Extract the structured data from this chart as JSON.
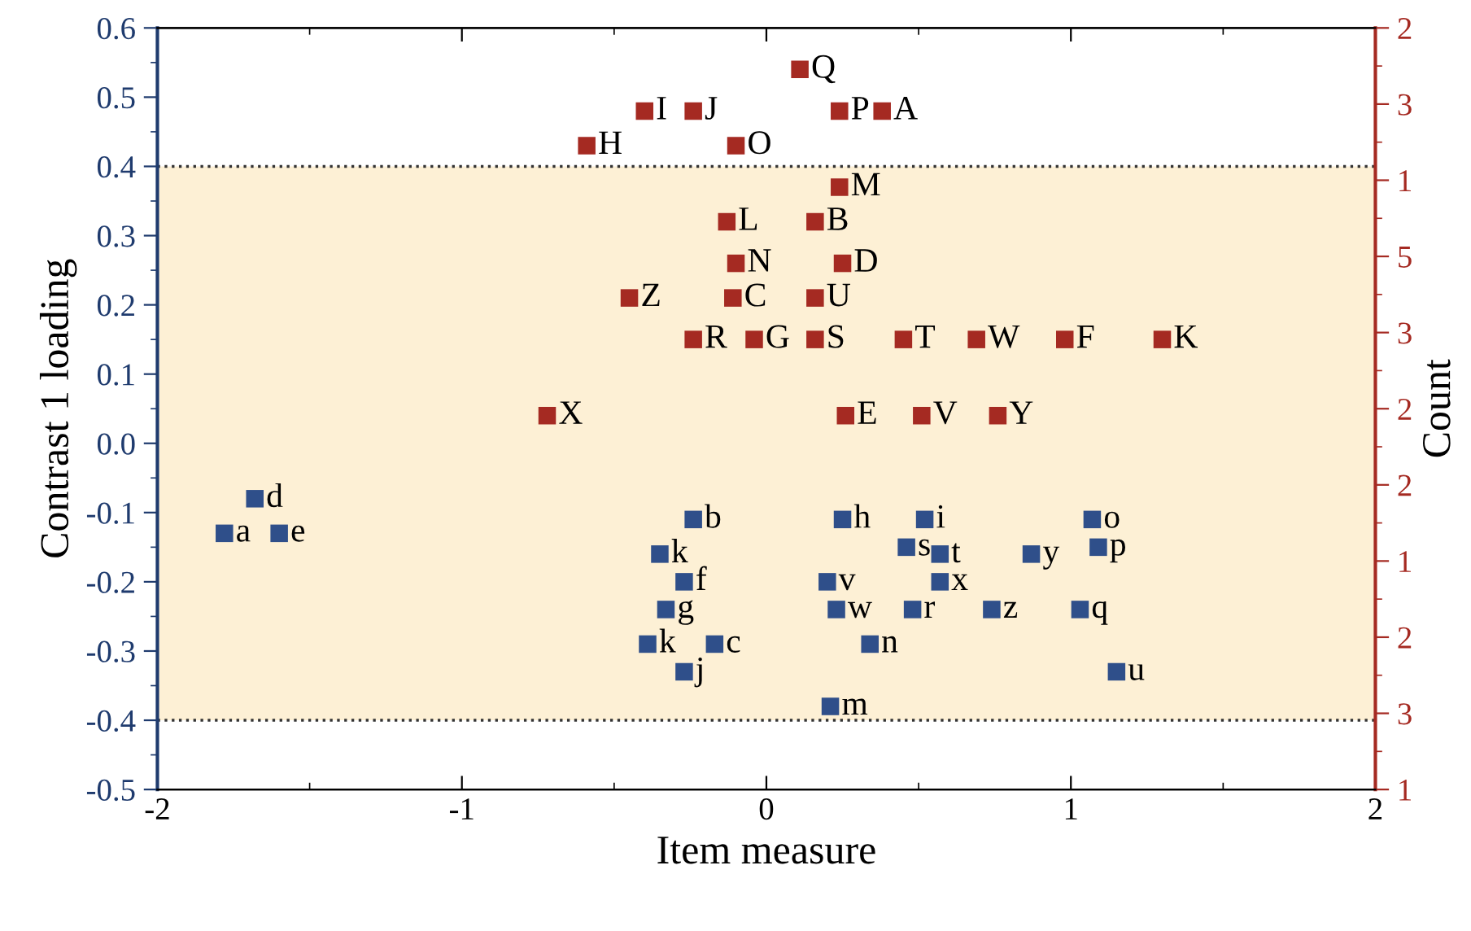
{
  "chart_data": {
    "type": "scatter",
    "xlabel": "Item measure",
    "ylabel": "Contrast 1 loading",
    "y2label": "Count",
    "xlim": [
      -2,
      2
    ],
    "xticks": [
      -2,
      -1,
      0,
      1,
      2
    ],
    "ylim": [
      -0.5,
      0.6
    ],
    "yticks": [
      {
        "value": -0.5,
        "label": "-0.5"
      },
      {
        "value": -0.4,
        "label": "-0.4"
      },
      {
        "value": -0.3,
        "label": "-0.3"
      },
      {
        "value": -0.2,
        "label": "-0.2"
      },
      {
        "value": -0.1,
        "label": "-0.1"
      },
      {
        "value": 0,
        "label": "0.0"
      },
      {
        "value": 0.1,
        "label": "0.1"
      },
      {
        "value": 0.2,
        "label": "0.2"
      },
      {
        "value": 0.3,
        "label": "0.3"
      },
      {
        "value": 0.4,
        "label": "0.4"
      },
      {
        "value": 0.5,
        "label": "0.5"
      },
      {
        "value": 0.6,
        "label": "0.6"
      }
    ],
    "y2_categories": [
      "2",
      "3",
      "1",
      "5",
      "3",
      "2",
      "2",
      "1",
      "2",
      "3",
      "1"
    ],
    "marker": "square",
    "grid": false,
    "legend": false,
    "bands": [
      {
        "axis": "y",
        "from": -0.4,
        "to": 0.4,
        "color": "#fdf0d5"
      }
    ],
    "ref_lines": [
      {
        "axis": "y",
        "value": 0.4,
        "line_style": "dotted",
        "color": "#333333"
      },
      {
        "axis": "y",
        "value": -0.4,
        "line_style": "dotted",
        "color": "#333333"
      }
    ],
    "series": [
      {
        "color": "#a52a22",
        "x": [
          0.11,
          -0.4,
          -0.24,
          0.24,
          0.38,
          -0.59,
          -0.1,
          0.24,
          -0.13,
          0.16,
          -0.1,
          0.25,
          -0.45,
          -0.11,
          0.16,
          -0.24,
          -0.04,
          0.16,
          0.45,
          0.69,
          0.98,
          1.3,
          -0.72,
          0.26,
          0.51,
          0.76
        ],
        "values": [
          0.54,
          0.48,
          0.48,
          0.48,
          0.48,
          0.43,
          0.43,
          0.37,
          0.32,
          0.32,
          0.26,
          0.26,
          0.21,
          0.21,
          0.21,
          0.15,
          0.15,
          0.15,
          0.15,
          0.15,
          0.15,
          0.15,
          0.04,
          0.04,
          0.04,
          0.04
        ]
      },
      {
        "color": "#2f4f8a",
        "x": [
          -1.68,
          -1.78,
          -1.6,
          -0.24,
          -0.35,
          -0.27,
          -0.33,
          -0.39,
          -0.17,
          -0.27,
          0.25,
          0.52,
          0.46,
          0.57,
          0.87,
          1.07,
          1.09,
          0.2,
          0.57,
          0.23,
          0.48,
          0.74,
          1.03,
          0.34,
          1.15,
          0.21
        ],
        "values": [
          -0.08,
          -0.13,
          -0.13,
          -0.11,
          -0.16,
          -0.2,
          -0.24,
          -0.29,
          -0.29,
          -0.33,
          -0.11,
          -0.11,
          -0.15,
          -0.16,
          -0.16,
          -0.11,
          -0.15,
          -0.2,
          -0.2,
          -0.24,
          -0.24,
          -0.24,
          -0.24,
          -0.29,
          -0.33,
          -0.38
        ]
      }
    ],
    "annotations": [
      {
        "text": "Q",
        "x": 0.11,
        "y": 0.54
      },
      {
        "text": "I",
        "x": -0.4,
        "y": 0.48
      },
      {
        "text": "J",
        "x": -0.24,
        "y": 0.48
      },
      {
        "text": "P",
        "x": 0.24,
        "y": 0.48
      },
      {
        "text": "A",
        "x": 0.38,
        "y": 0.48
      },
      {
        "text": "H",
        "x": -0.59,
        "y": 0.43
      },
      {
        "text": "O",
        "x": -0.1,
        "y": 0.43
      },
      {
        "text": "M",
        "x": 0.24,
        "y": 0.37
      },
      {
        "text": "L",
        "x": -0.13,
        "y": 0.32
      },
      {
        "text": "B",
        "x": 0.16,
        "y": 0.32
      },
      {
        "text": "N",
        "x": -0.1,
        "y": 0.26
      },
      {
        "text": "D",
        "x": 0.25,
        "y": 0.26
      },
      {
        "text": "Z",
        "x": -0.45,
        "y": 0.21
      },
      {
        "text": "C",
        "x": -0.11,
        "y": 0.21
      },
      {
        "text": "U",
        "x": 0.16,
        "y": 0.21
      },
      {
        "text": "R",
        "x": -0.24,
        "y": 0.15
      },
      {
        "text": "G",
        "x": -0.04,
        "y": 0.15
      },
      {
        "text": "S",
        "x": 0.16,
        "y": 0.15
      },
      {
        "text": "T",
        "x": 0.45,
        "y": 0.15
      },
      {
        "text": "W",
        "x": 0.69,
        "y": 0.15
      },
      {
        "text": "F",
        "x": 0.98,
        "y": 0.15
      },
      {
        "text": "K",
        "x": 1.3,
        "y": 0.15
      },
      {
        "text": "X",
        "x": -0.72,
        "y": 0.04
      },
      {
        "text": "E",
        "x": 0.26,
        "y": 0.04
      },
      {
        "text": "V",
        "x": 0.51,
        "y": 0.04
      },
      {
        "text": "Y",
        "x": 0.76,
        "y": 0.04
      },
      {
        "text": "d",
        "x": -1.68,
        "y": -0.08
      },
      {
        "text": "a",
        "x": -1.78,
        "y": -0.13
      },
      {
        "text": "e",
        "x": -1.6,
        "y": -0.13
      },
      {
        "text": "b",
        "x": -0.24,
        "y": -0.11
      },
      {
        "text": "k",
        "x": -0.35,
        "y": -0.16
      },
      {
        "text": "f",
        "x": -0.27,
        "y": -0.2
      },
      {
        "text": "g",
        "x": -0.33,
        "y": -0.24
      },
      {
        "text": "k",
        "x": -0.39,
        "y": -0.29
      },
      {
        "text": "c",
        "x": -0.17,
        "y": -0.29
      },
      {
        "text": "j",
        "x": -0.27,
        "y": -0.33
      },
      {
        "text": "h",
        "x": 0.25,
        "y": -0.11
      },
      {
        "text": "i",
        "x": 0.52,
        "y": -0.11
      },
      {
        "text": "s",
        "x": 0.46,
        "y": -0.15
      },
      {
        "text": "t",
        "x": 0.57,
        "y": -0.16
      },
      {
        "text": "y",
        "x": 0.87,
        "y": -0.16
      },
      {
        "text": "o",
        "x": 1.07,
        "y": -0.11
      },
      {
        "text": "p",
        "x": 1.09,
        "y": -0.15
      },
      {
        "text": "v",
        "x": 0.2,
        "y": -0.2
      },
      {
        "text": "x",
        "x": 0.57,
        "y": -0.2
      },
      {
        "text": "w",
        "x": 0.23,
        "y": -0.24
      },
      {
        "text": "r",
        "x": 0.48,
        "y": -0.24
      },
      {
        "text": "z",
        "x": 0.74,
        "y": -0.24
      },
      {
        "text": "q",
        "x": 1.03,
        "y": -0.24
      },
      {
        "text": "n",
        "x": 0.34,
        "y": -0.29
      },
      {
        "text": "u",
        "x": 1.15,
        "y": -0.33
      },
      {
        "text": "m",
        "x": 0.21,
        "y": -0.38
      }
    ]
  }
}
